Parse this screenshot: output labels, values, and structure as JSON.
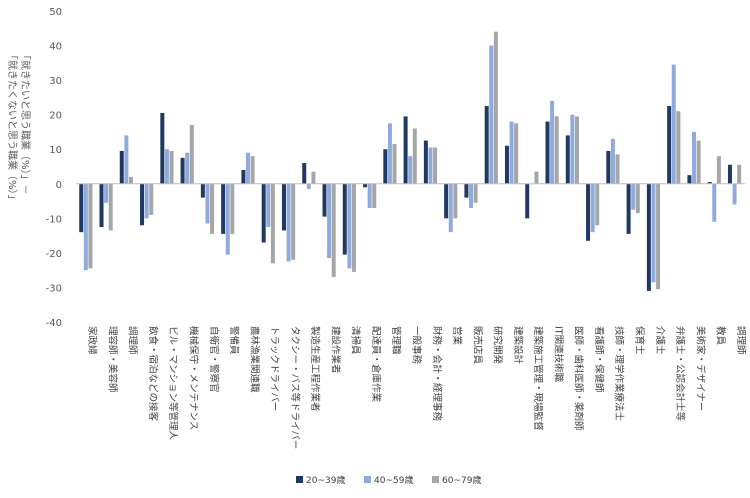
{
  "chart_data": {
    "type": "bar",
    "title": "",
    "ylabel_lines": [
      "「就きたいと思う職業（%）」－",
      "「就きたくないと思う職業（%）」"
    ],
    "ylim": [
      -40,
      50
    ],
    "yticks": [
      50,
      40,
      30,
      20,
      10,
      0,
      -10,
      -20,
      -30,
      -40
    ],
    "colors": [
      "#1f3864",
      "#8faadc",
      "#a6a6a6"
    ],
    "categories": [
      "家政婦",
      "理容師・美容師",
      "調理師",
      "飲食・宿泊などの接客",
      "ビル・マンション等管理人",
      "機械保守・メンテナンス",
      "自衛官・警察官",
      "警備員",
      "農林漁業関連職",
      "トラックドライバー",
      "タクシー・バス等ドライバー",
      "製造生産工程作業者",
      "建設作業者",
      "清掃員",
      "配達員・倉庫作業",
      "管理職",
      "一般事務",
      "財務・会計・経理事務",
      "営業",
      "販売店員",
      "研究開発",
      "建築設計",
      "建築施工管理・現場監督",
      "IT関連技術職",
      "医師・歯科医師・薬剤師",
      "看護師・保健師",
      "技師・理学作業療法士",
      "保育士",
      "介護士",
      "弁護士・公認会計士等",
      "美術家・デザイナー",
      "教員",
      "調理師"
    ],
    "series": [
      {
        "name": "20~39歳",
        "values": [
          -14,
          -12.5,
          9.5,
          -12,
          20.5,
          7.5,
          -4,
          -14.5,
          4,
          -17,
          -13.5,
          6,
          -9.5,
          -20.5,
          -1,
          10,
          19.5,
          12.5,
          -10,
          -4,
          22.5,
          11,
          -10,
          18,
          14,
          -16.5,
          9.5,
          -14.5,
          -31,
          22.5,
          2.5,
          0.5,
          5.5
        ]
      },
      {
        "name": "40~59歳",
        "values": [
          -25,
          -5.5,
          14,
          -10,
          10,
          9,
          -11.5,
          -20.5,
          9,
          -12.5,
          -22.5,
          -1.5,
          -21.5,
          -24.5,
          -7,
          17.5,
          8,
          10.5,
          -14,
          -7,
          40,
          18,
          0,
          24,
          20,
          -14,
          13,
          -7.5,
          -28.5,
          34.5,
          15,
          -11,
          -6
        ]
      },
      {
        "name": "60~79歳",
        "values": [
          -24.5,
          -13.5,
          2,
          -9,
          9.5,
          17,
          -14.5,
          -14.5,
          8,
          -23,
          -22,
          3.5,
          -27,
          -25.5,
          -7,
          11.5,
          16,
          10.5,
          -10,
          -5.5,
          44,
          17.5,
          3.5,
          19.5,
          19.5,
          -12,
          8.5,
          -8.5,
          -30.5,
          21,
          12.5,
          8,
          5.5
        ]
      }
    ],
    "legend_position": "bottom"
  }
}
